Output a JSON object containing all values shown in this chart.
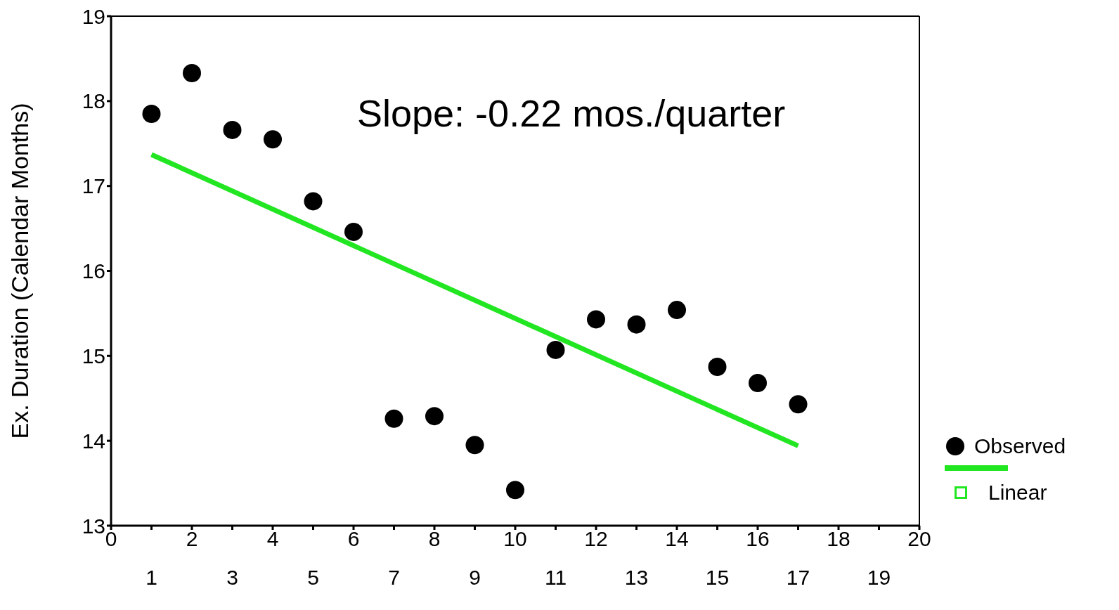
{
  "chart_data": {
    "type": "scatter",
    "ylabel": "Ex. Duration (Calendar Months)",
    "annotations": [
      "Slope: -0.22 mos./quarter"
    ],
    "xlim": [
      0,
      20
    ],
    "xticks": [
      0,
      {
        "value": 1,
        "label": null
      },
      2,
      {
        "value": 3,
        "label": null
      },
      4,
      {
        "value": 5,
        "label": null
      },
      6,
      {
        "value": 7,
        "label": null
      },
      8,
      {
        "value": 9,
        "label": null
      },
      10,
      {
        "value": 11,
        "label": null
      },
      12,
      {
        "value": 13,
        "label": null
      },
      14,
      {
        "value": 15,
        "label": null
      },
      16,
      {
        "value": 17,
        "label": null
      },
      18,
      {
        "value": 19,
        "label": null
      },
      20
    ],
    "x2lim": [
      0,
      20
    ],
    "x2ticks": [
      1,
      3,
      5,
      7,
      9,
      11,
      13,
      15,
      17,
      19
    ],
    "ylim": [
      13,
      19
    ],
    "yticks": [
      13,
      14,
      15,
      16,
      17,
      18,
      19
    ],
    "legend": "right",
    "marker": "circle",
    "series": [
      {
        "name": "Observed",
        "color": "#000000",
        "x": [
          1,
          2,
          3,
          4,
          5,
          6,
          7,
          8,
          9,
          10,
          11,
          12,
          13,
          14,
          15,
          16,
          17
        ],
        "values": [
          17.85,
          18.33,
          17.66,
          17.55,
          16.82,
          16.46,
          14.26,
          14.29,
          13.95,
          13.42,
          15.07,
          15.43,
          15.37,
          15.54,
          14.87,
          14.68,
          14.43
        ]
      },
      {
        "name": "Linear",
        "type": "line",
        "marker": "none",
        "color": "#22e622",
        "x": [
          1,
          17
        ],
        "values": [
          17.37,
          13.94
        ]
      }
    ]
  }
}
